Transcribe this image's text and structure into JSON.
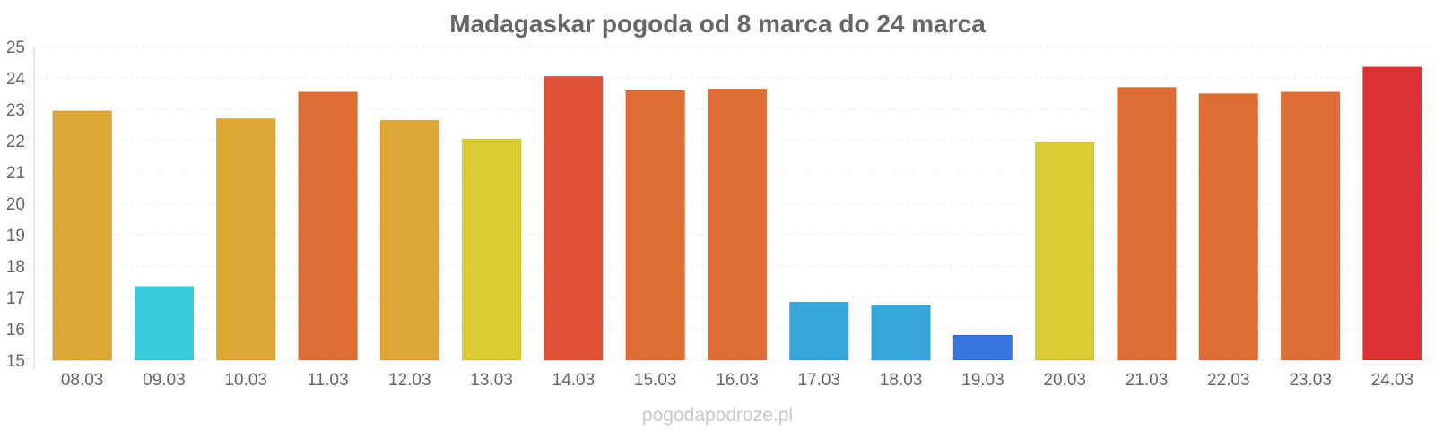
{
  "watermark": "pogodapodroze.pl",
  "chart_data": {
    "type": "bar",
    "title": "Madagaskar pogoda od 8 marca do 24 marca",
    "xlabel": "",
    "ylabel": "",
    "ylim": [
      15,
      25
    ],
    "yticks": [
      "15",
      "16",
      "17",
      "18",
      "19",
      "20",
      "21",
      "22",
      "23",
      "24",
      "25"
    ],
    "grid": true,
    "legend": "none",
    "categories": [
      "08.03",
      "09.03",
      "10.03",
      "11.03",
      "12.03",
      "13.03",
      "14.03",
      "15.03",
      "16.03",
      "17.03",
      "18.03",
      "19.03",
      "20.03",
      "21.03",
      "22.03",
      "23.03",
      "24.03"
    ],
    "values": [
      22.95,
      17.35,
      22.7,
      23.55,
      22.65,
      22.05,
      24.05,
      23.6,
      23.65,
      16.85,
      16.75,
      15.8,
      21.95,
      23.7,
      23.5,
      23.55,
      24.35
    ],
    "colors": [
      "#dca734",
      "#36ccda",
      "#dca734",
      "#de6e34",
      "#dca734",
      "#dccc34",
      "#de5034",
      "#de6e34",
      "#de6e34",
      "#36a6dc",
      "#36a6dc",
      "#3675dc",
      "#dccc34",
      "#de6e34",
      "#de6e34",
      "#de6e34",
      "#dc3234"
    ]
  }
}
